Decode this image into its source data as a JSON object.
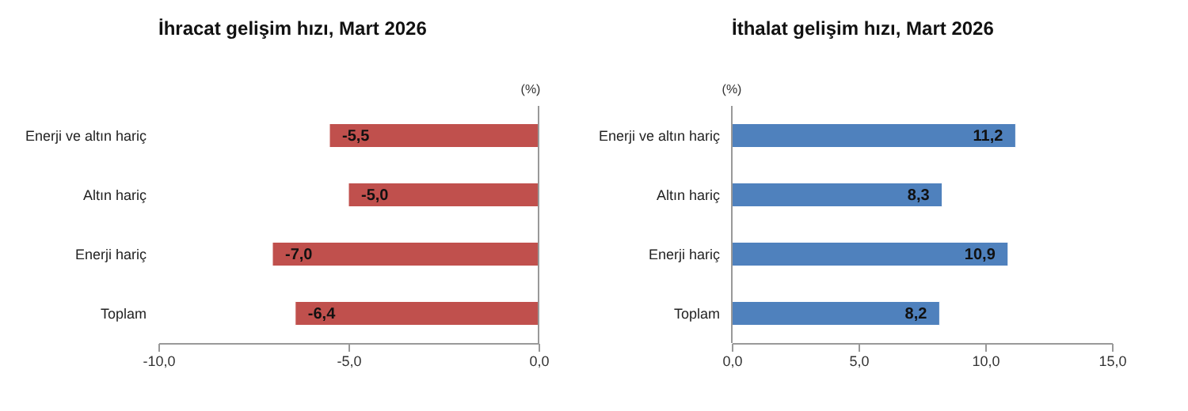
{
  "chart_data": [
    {
      "type": "bar",
      "orientation": "horizontal",
      "title": "İhracat gelişim hızı, Mart 2026",
      "annotations": [
        "(%)"
      ],
      "categories": [
        "Enerji ve altın hariç",
        "Altın hariç",
        "Enerji hariç",
        "Toplam"
      ],
      "values": [
        -5.5,
        -5.0,
        -7.0,
        -6.4
      ],
      "value_labels": [
        "-5,5",
        "-5,0",
        "-7,0",
        "-6,4"
      ],
      "color": "#c0504d",
      "xlim": [
        -10,
        0
      ],
      "xticks": [
        {
          "value": -10,
          "label": "-10,0"
        },
        {
          "value": -5,
          "label": "-5,0"
        },
        {
          "value": 0,
          "label": "0,0"
        }
      ],
      "grid": false
    },
    {
      "type": "bar",
      "orientation": "horizontal",
      "title": "İthalat gelişim hızı, Mart 2026",
      "annotations": [
        "(%)"
      ],
      "categories": [
        "Enerji ve altın hariç",
        "Altın hariç",
        "Enerji hariç",
        "Toplam"
      ],
      "values": [
        11.2,
        8.3,
        10.9,
        8.2
      ],
      "value_labels": [
        "11,2",
        "8,3",
        "10,9",
        "8,2"
      ],
      "color": "#4f81bd",
      "xlim": [
        0,
        15
      ],
      "xticks": [
        {
          "value": 0,
          "label": "0,0"
        },
        {
          "value": 5,
          "label": "5,0"
        },
        {
          "value": 10,
          "label": "10,0"
        },
        {
          "value": 15,
          "label": "15,0"
        }
      ],
      "grid": false
    }
  ]
}
